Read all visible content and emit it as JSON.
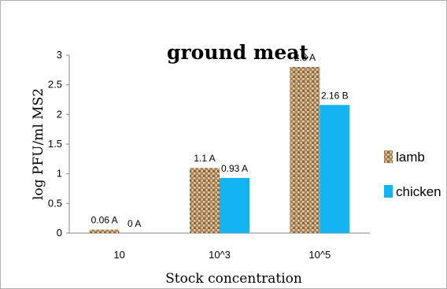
{
  "chart_data": {
    "type": "bar",
    "title": "ground meat",
    "xlabel": "Stock concentration",
    "ylabel": "log PFU/ml MS2",
    "categories": [
      "10",
      "10^3",
      "10^5"
    ],
    "ylim": [
      0,
      3
    ],
    "yticks": [
      "0",
      "0.5",
      "1",
      "1.5",
      "2",
      "2.5",
      "3"
    ],
    "grid": false,
    "legend_position": "right",
    "series": [
      {
        "name": "lamb",
        "color": "#b08a5c",
        "values": [
          0.06,
          1.1,
          2.8
        ],
        "labels": [
          "0.06 A",
          "1.1 A",
          "2.8 A"
        ]
      },
      {
        "name": "chicken",
        "color": "#14b4f0",
        "values": [
          0,
          0.93,
          2.16
        ],
        "labels": [
          "0 A",
          "0.93 A",
          "2.16 B"
        ]
      }
    ]
  }
}
